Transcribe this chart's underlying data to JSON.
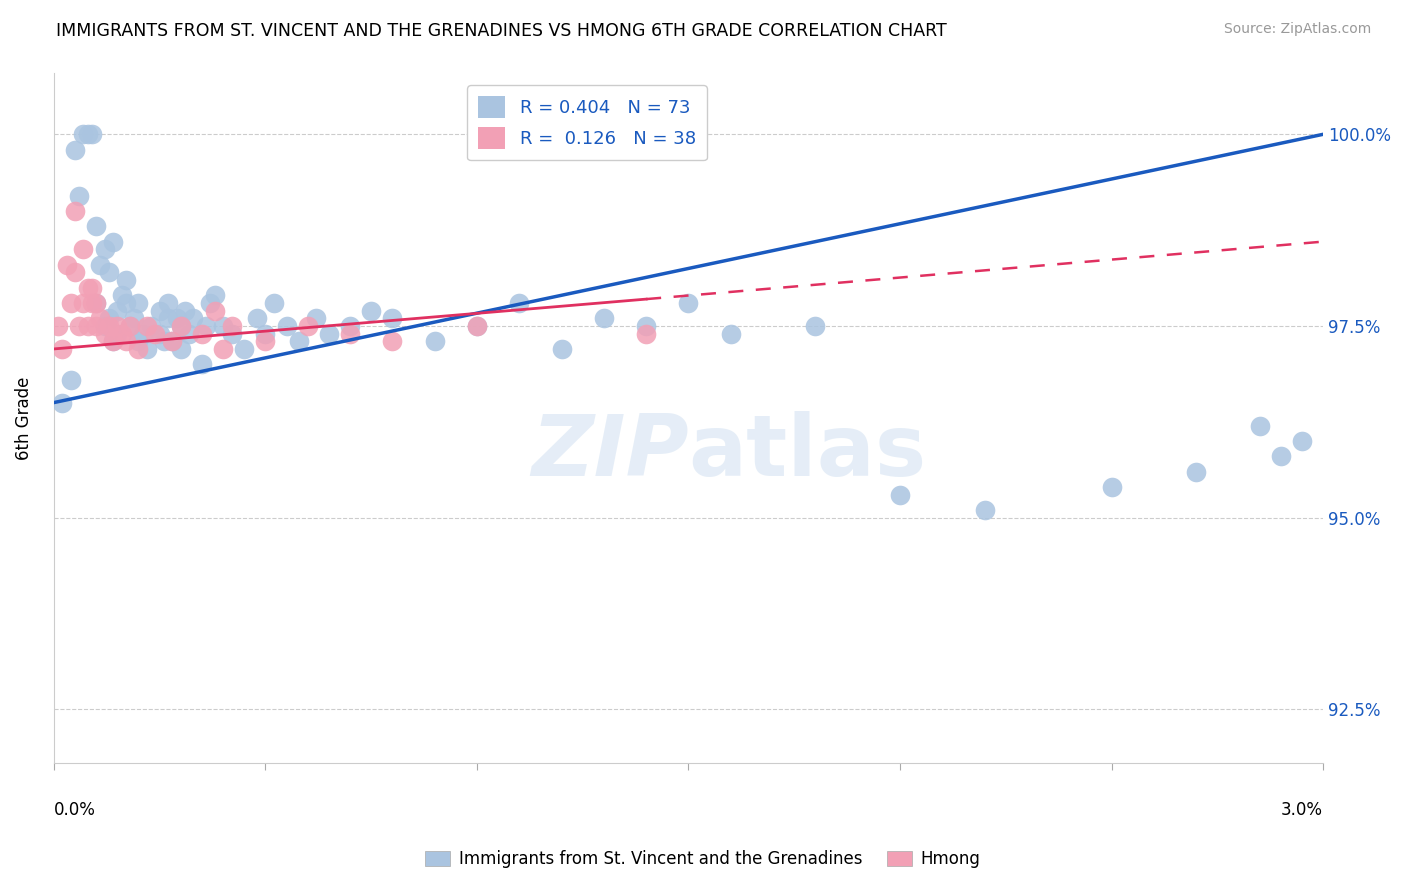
{
  "title": "IMMIGRANTS FROM ST. VINCENT AND THE GRENADINES VS HMONG 6TH GRADE CORRELATION CHART",
  "source": "Source: ZipAtlas.com",
  "ytick_values": [
    92.5,
    95.0,
    97.5,
    100.0
  ],
  "xmin": 0.0,
  "xmax": 3.0,
  "ymin": 91.8,
  "ymax": 100.8,
  "watermark": "ZIPatlas",
  "blue_R": 0.404,
  "blue_N": 73,
  "pink_R": 0.126,
  "pink_N": 38,
  "blue_color": "#aac4e0",
  "pink_color": "#f2a0b5",
  "blue_line_color": "#1a5abf",
  "pink_line_color": "#e03060",
  "blue_line_x0": 0.0,
  "blue_line_y0": 96.5,
  "blue_line_x1": 3.0,
  "blue_line_y1": 100.0,
  "pink_line_x0": 0.0,
  "pink_line_y0": 97.2,
  "pink_line_x1": 1.4,
  "pink_line_y1": 97.85,
  "pink_dash_x0": 1.4,
  "pink_dash_y0": 97.85,
  "pink_dash_x1": 3.0,
  "pink_dash_y1": 98.6,
  "blue_scatter_x": [
    0.02,
    0.04,
    0.05,
    0.06,
    0.07,
    0.08,
    0.09,
    0.1,
    0.1,
    0.11,
    0.12,
    0.12,
    0.13,
    0.13,
    0.14,
    0.14,
    0.15,
    0.15,
    0.16,
    0.17,
    0.17,
    0.18,
    0.19,
    0.2,
    0.2,
    0.21,
    0.22,
    0.23,
    0.25,
    0.25,
    0.26,
    0.27,
    0.27,
    0.28,
    0.29,
    0.3,
    0.3,
    0.31,
    0.32,
    0.33,
    0.35,
    0.36,
    0.37,
    0.38,
    0.4,
    0.42,
    0.45,
    0.48,
    0.5,
    0.52,
    0.55,
    0.58,
    0.62,
    0.65,
    0.7,
    0.75,
    0.8,
    0.9,
    1.0,
    1.1,
    1.2,
    1.3,
    1.4,
    1.5,
    1.6,
    1.8,
    2.0,
    2.2,
    2.5,
    2.7,
    2.85,
    2.9,
    2.95
  ],
  "blue_scatter_y": [
    96.5,
    96.8,
    99.8,
    99.2,
    100.0,
    100.0,
    100.0,
    97.8,
    98.8,
    98.3,
    97.5,
    98.5,
    97.6,
    98.2,
    97.3,
    98.6,
    97.4,
    97.7,
    97.9,
    97.8,
    98.1,
    97.5,
    97.6,
    97.3,
    97.8,
    97.4,
    97.2,
    97.5,
    97.4,
    97.7,
    97.3,
    97.6,
    97.8,
    97.3,
    97.6,
    97.2,
    97.5,
    97.7,
    97.4,
    97.6,
    97.0,
    97.5,
    97.8,
    97.9,
    97.5,
    97.4,
    97.2,
    97.6,
    97.4,
    97.8,
    97.5,
    97.3,
    97.6,
    97.4,
    97.5,
    97.7,
    97.6,
    97.3,
    97.5,
    97.8,
    97.2,
    97.6,
    97.5,
    97.8,
    97.4,
    97.5,
    95.3,
    95.1,
    95.4,
    95.6,
    96.2,
    95.8,
    96.0
  ],
  "pink_scatter_x": [
    0.01,
    0.02,
    0.03,
    0.04,
    0.05,
    0.05,
    0.06,
    0.07,
    0.07,
    0.08,
    0.08,
    0.09,
    0.09,
    0.1,
    0.1,
    0.11,
    0.12,
    0.13,
    0.14,
    0.15,
    0.16,
    0.17,
    0.18,
    0.2,
    0.22,
    0.24,
    0.28,
    0.3,
    0.35,
    0.38,
    0.4,
    0.42,
    0.5,
    0.6,
    0.7,
    0.8,
    1.0,
    1.4
  ],
  "pink_scatter_y": [
    97.5,
    97.2,
    98.3,
    97.8,
    99.0,
    98.2,
    97.5,
    97.8,
    98.5,
    98.0,
    97.5,
    97.8,
    98.0,
    97.5,
    97.8,
    97.6,
    97.4,
    97.5,
    97.3,
    97.5,
    97.4,
    97.3,
    97.5,
    97.2,
    97.5,
    97.4,
    97.3,
    97.5,
    97.4,
    97.7,
    97.2,
    97.5,
    97.3,
    97.5,
    97.4,
    97.3,
    97.5,
    97.4
  ]
}
